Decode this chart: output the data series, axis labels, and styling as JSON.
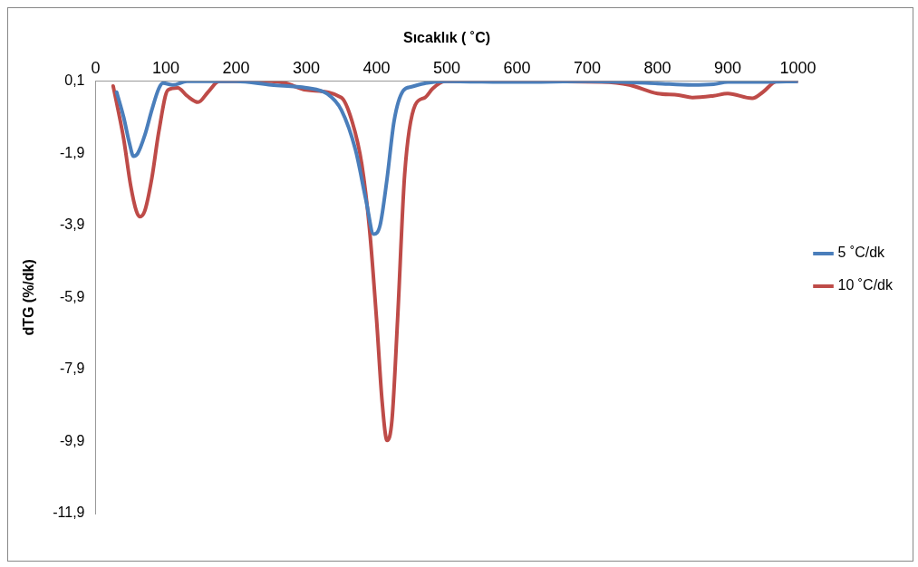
{
  "chart_data": {
    "type": "line",
    "xlabel": "Sıcaklık ( ˚C)",
    "ylabel": "dTG (%/dk)",
    "xlim": [
      0,
      1000
    ],
    "xticks": [
      0,
      100,
      200,
      300,
      400,
      500,
      600,
      700,
      800,
      900,
      1000
    ],
    "ylim": [
      -11.9,
      0.1
    ],
    "yticks": [
      {
        "value": 0.1,
        "label": "0,1"
      },
      {
        "value": -1.9,
        "label": "-1,9"
      },
      {
        "value": -3.9,
        "label": "-3,9"
      },
      {
        "value": -5.9,
        "label": "-5,9"
      },
      {
        "value": -7.9,
        "label": "-7,9"
      },
      {
        "value": -9.9,
        "label": "-9,9"
      },
      {
        "value": -11.9,
        "label": "-11,9"
      }
    ],
    "grid": false,
    "legend": "right",
    "marker": "none",
    "line_style": "solid",
    "series": [
      {
        "name": "5 ˚C/dk",
        "color": "#4a7ebb",
        "x": [
          30,
          40,
          48,
          54,
          60,
          70,
          80,
          90,
          96,
          110,
          130,
          150,
          200,
          250,
          300,
          330,
          350,
          370,
          385,
          396,
          405,
          415,
          425,
          438,
          450,
          470,
          500,
          600,
          700,
          750,
          800,
          850,
          880,
          900,
          950,
          1000
        ],
        "values": [
          -0.2,
          -0.9,
          -1.6,
          -1.98,
          -1.9,
          -1.4,
          -0.7,
          -0.1,
          0.05,
          0,
          0.1,
          0.1,
          0.1,
          0.0,
          -0.08,
          -0.25,
          -0.7,
          -1.8,
          -3.2,
          -4.14,
          -3.9,
          -2.6,
          -1.0,
          -0.16,
          -0.05,
          0.05,
          0.1,
          0.08,
          0.1,
          0.08,
          0.04,
          0.0,
          0.02,
          0.08,
          0.08,
          0.1
        ]
      },
      {
        "name": "10 ˚C/dk",
        "color": "#be4b48",
        "x": [
          25,
          30,
          40,
          50,
          58,
          63,
          70,
          80,
          90,
          103,
          117,
          130,
          146,
          160,
          176,
          200,
          250,
          270,
          300,
          350,
          365,
          379,
          390,
          400,
          408,
          415,
          422,
          430,
          440,
          455,
          469,
          480,
          497,
          600,
          720,
          760,
          800,
          830,
          850,
          880,
          900,
          935,
          950,
          970,
          1000
        ],
        "values": [
          -0.03,
          -0.5,
          -1.5,
          -2.8,
          -3.5,
          -3.66,
          -3.5,
          -2.6,
          -1.3,
          -0.14,
          -0.08,
          -0.3,
          -0.48,
          -0.2,
          0.1,
          0.1,
          0.1,
          0.05,
          -0.14,
          -0.35,
          -1.0,
          -2.2,
          -4.0,
          -6.5,
          -8.8,
          -9.87,
          -9.3,
          -6.5,
          -2.5,
          -0.56,
          -0.35,
          -0.1,
          0.1,
          0.1,
          0.08,
          0.0,
          -0.24,
          -0.28,
          -0.35,
          -0.3,
          -0.24,
          -0.37,
          -0.2,
          0.1,
          0.1
        ]
      }
    ]
  }
}
